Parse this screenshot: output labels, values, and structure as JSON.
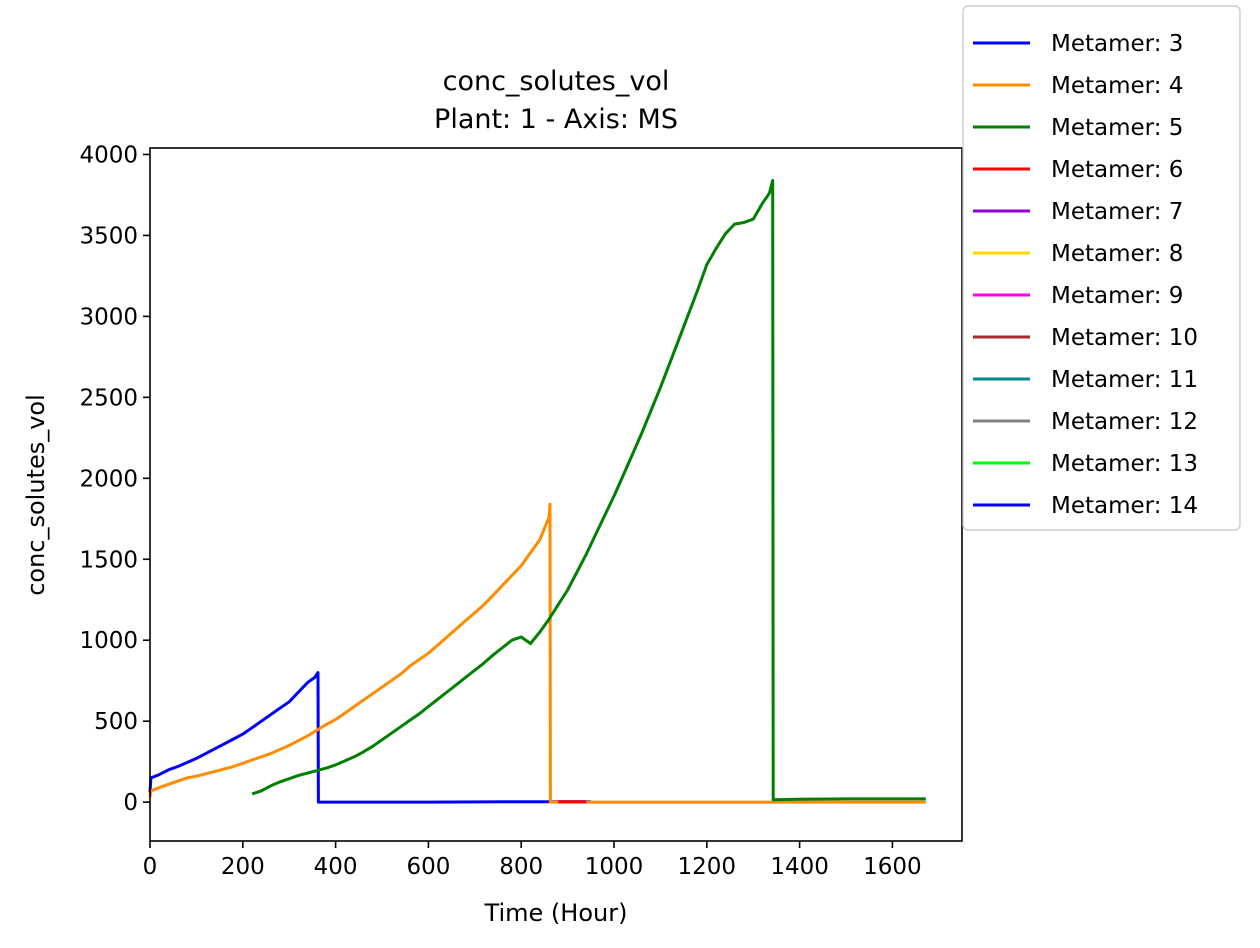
{
  "chart_data": {
    "type": "line",
    "title": "conc_solutes_vol",
    "subtitle": "Plant: 1 - Axis: MS",
    "xlabel": "Time (Hour)",
    "ylabel": "conc_solutes_vol",
    "xlim": [
      0,
      1750
    ],
    "ylim": [
      -240,
      4040
    ],
    "xticks": [
      0,
      200,
      400,
      600,
      800,
      1000,
      1200,
      1400,
      1600
    ],
    "yticks": [
      0,
      500,
      1000,
      1500,
      2000,
      2500,
      3000,
      3500,
      4000
    ],
    "grid": false,
    "legend_position": "outside-right",
    "series": [
      {
        "name": "Metamer: 3",
        "color": "#0000ff",
        "x": [
          0,
          2,
          20,
          40,
          60,
          80,
          100,
          120,
          140,
          160,
          180,
          200,
          220,
          240,
          260,
          280,
          300,
          320,
          340,
          355,
          362,
          363,
          400,
          600,
          800,
          950
        ],
        "y": [
          60,
          150,
          170,
          200,
          220,
          245,
          270,
          300,
          330,
          360,
          390,
          420,
          460,
          500,
          540,
          580,
          620,
          680,
          740,
          770,
          800,
          0,
          0,
          0,
          3,
          3
        ]
      },
      {
        "name": "Metamer: 4",
        "color": "#ff8c00",
        "x": [
          0,
          2,
          20,
          40,
          60,
          80,
          100,
          120,
          140,
          160,
          180,
          200,
          220,
          240,
          260,
          280,
          300,
          320,
          340,
          360,
          380,
          400,
          420,
          440,
          460,
          480,
          500,
          520,
          540,
          560,
          580,
          600,
          620,
          640,
          660,
          680,
          700,
          720,
          740,
          760,
          780,
          800,
          820,
          840,
          860,
          862,
          863,
          900,
          1000,
          1200,
          1400,
          1672
        ],
        "y": [
          30,
          70,
          90,
          110,
          130,
          150,
          160,
          175,
          190,
          205,
          220,
          240,
          260,
          280,
          300,
          325,
          350,
          380,
          410,
          445,
          480,
          510,
          550,
          590,
          630,
          670,
          710,
          750,
          790,
          840,
          880,
          920,
          970,
          1020,
          1070,
          1120,
          1170,
          1220,
          1280,
          1340,
          1400,
          1460,
          1540,
          1620,
          1760,
          1840,
          0,
          0,
          0,
          0,
          0,
          0
        ]
      },
      {
        "name": "Metamer: 5",
        "color": "#008000",
        "x": [
          220,
          240,
          260,
          280,
          300,
          320,
          340,
          360,
          380,
          400,
          420,
          440,
          460,
          480,
          500,
          520,
          540,
          560,
          580,
          600,
          620,
          640,
          660,
          680,
          700,
          720,
          740,
          760,
          780,
          800,
          820,
          840,
          860,
          880,
          900,
          920,
          940,
          960,
          980,
          1000,
          1020,
          1040,
          1060,
          1080,
          1100,
          1120,
          1140,
          1160,
          1180,
          1200,
          1220,
          1240,
          1260,
          1280,
          1300,
          1320,
          1335,
          1342,
          1343,
          1400,
          1500,
          1600,
          1672
        ],
        "y": [
          50,
          70,
          100,
          125,
          145,
          165,
          180,
          195,
          210,
          230,
          255,
          280,
          310,
          345,
          385,
          425,
          465,
          505,
          545,
          590,
          635,
          680,
          725,
          770,
          815,
          860,
          910,
          955,
          1000,
          1020,
          980,
          1050,
          1130,
          1220,
          1310,
          1420,
          1530,
          1650,
          1770,
          1890,
          2020,
          2150,
          2280,
          2420,
          2560,
          2710,
          2860,
          3010,
          3160,
          3320,
          3420,
          3510,
          3570,
          3580,
          3600,
          3700,
          3760,
          3840,
          15,
          18,
          20,
          20,
          20
        ]
      },
      {
        "name": "Metamer: 6",
        "color": "#ff0000",
        "x": [
          880,
          940
        ],
        "y": [
          3,
          3
        ]
      },
      {
        "name": "Metamer: 7",
        "color": "#9400d3",
        "x": [],
        "y": []
      },
      {
        "name": "Metamer: 8",
        "color": "#ffd700",
        "x": [],
        "y": []
      },
      {
        "name": "Metamer: 9",
        "color": "#ff00ff",
        "x": [],
        "y": []
      },
      {
        "name": "Metamer: 10",
        "color": "#a52a2a",
        "x": [],
        "y": []
      },
      {
        "name": "Metamer: 11",
        "color": "#008b8b",
        "x": [],
        "y": []
      },
      {
        "name": "Metamer: 12",
        "color": "#808080",
        "x": [],
        "y": []
      },
      {
        "name": "Metamer: 13",
        "color": "#00ff00",
        "x": [],
        "y": []
      },
      {
        "name": "Metamer: 14",
        "color": "#0000ff",
        "x": [],
        "y": []
      }
    ]
  }
}
